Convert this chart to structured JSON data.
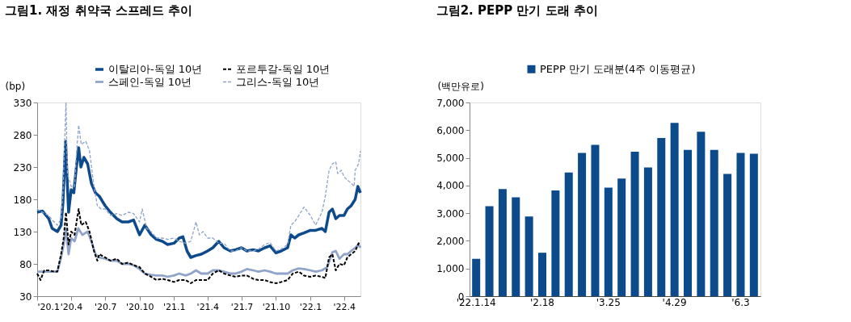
{
  "chart_data": [
    {
      "type": "line",
      "title": "그림1. 재정 취약국 스프레드 추이",
      "ylabel": "(bp)",
      "xlim": [
        "2020-01-01",
        "2022-05-15"
      ],
      "ylim": [
        30,
        330
      ],
      "yticks": [
        30,
        80,
        130,
        180,
        230,
        280,
        330
      ],
      "xticks": [
        {
          "value": "2020-01-01",
          "label": "'20.1"
        },
        {
          "value": "2020-04-01",
          "label": "'20.4"
        },
        {
          "value": "2020-07-01",
          "label": "'20.7"
        },
        {
          "value": "2020-10-01",
          "label": "'20.10"
        },
        {
          "value": "2021-01-01",
          "label": "'21.1"
        },
        {
          "value": "2021-04-01",
          "label": "'21.4"
        },
        {
          "value": "2021-07-01",
          "label": "'21.7"
        },
        {
          "value": "2021-10-01",
          "label": "'21.10"
        },
        {
          "value": "2022-01-01",
          "label": "'22.1"
        },
        {
          "value": "2022-04-01",
          "label": "'22.4"
        }
      ],
      "grid": false,
      "legend": "top",
      "marker": "none",
      "series": [
        {
          "name": "이탈리아-독일 10년",
          "color": "#0d4a8c",
          "line_style": "solid",
          "x": [
            "2020-01-01",
            "2020-01-15",
            "2020-02-01",
            "2020-02-10",
            "2020-02-24",
            "2020-03-05",
            "2020-03-10",
            "2020-03-17",
            "2020-03-25",
            "2020-04-01",
            "2020-04-08",
            "2020-04-15",
            "2020-04-21",
            "2020-04-27",
            "2020-05-05",
            "2020-05-15",
            "2020-05-25",
            "2020-06-05",
            "2020-06-15",
            "2020-07-01",
            "2020-07-15",
            "2020-08-01",
            "2020-08-15",
            "2020-09-01",
            "2020-09-15",
            "2020-10-01",
            "2020-10-15",
            "2020-11-01",
            "2020-11-15",
            "2020-12-01",
            "2020-12-15",
            "2021-01-01",
            "2021-01-15",
            "2021-01-25",
            "2021-02-05",
            "2021-02-15",
            "2021-03-01",
            "2021-03-15",
            "2021-04-01",
            "2021-04-15",
            "2021-05-01",
            "2021-05-15",
            "2021-06-01",
            "2021-06-15",
            "2021-07-01",
            "2021-07-15",
            "2021-08-01",
            "2021-08-15",
            "2021-09-01",
            "2021-09-15",
            "2021-10-01",
            "2021-10-15",
            "2021-11-01",
            "2021-11-10",
            "2021-11-20",
            "2021-12-01",
            "2021-12-15",
            "2022-01-01",
            "2022-01-15",
            "2022-02-01",
            "2022-02-10",
            "2022-02-20",
            "2022-03-01",
            "2022-03-10",
            "2022-03-20",
            "2022-04-01",
            "2022-04-10",
            "2022-04-20",
            "2022-05-01",
            "2022-05-08",
            "2022-05-15"
          ],
          "values": [
            160,
            162,
            150,
            135,
            130,
            140,
            175,
            270,
            160,
            195,
            190,
            230,
            260,
            230,
            245,
            235,
            205,
            190,
            185,
            170,
            160,
            150,
            145,
            145,
            148,
            125,
            140,
            125,
            118,
            115,
            110,
            112,
            120,
            122,
            100,
            90,
            93,
            95,
            100,
            105,
            115,
            105,
            100,
            102,
            105,
            100,
            102,
            100,
            105,
            108,
            97,
            100,
            105,
            125,
            120,
            125,
            128,
            132,
            132,
            135,
            130,
            160,
            165,
            150,
            155,
            155,
            165,
            170,
            180,
            200,
            190
          ]
        },
        {
          "name": "스페인-독일 10년",
          "color": "#8fa4c8",
          "line_style": "solid",
          "x": [
            "2020-01-01",
            "2020-02-01",
            "2020-02-24",
            "2020-03-05",
            "2020-03-12",
            "2020-03-18",
            "2020-03-25",
            "2020-04-01",
            "2020-04-10",
            "2020-04-20",
            "2020-05-01",
            "2020-05-15",
            "2020-05-25",
            "2020-06-05",
            "2020-06-15",
            "2020-07-01",
            "2020-07-15",
            "2020-08-01",
            "2020-08-15",
            "2020-09-01",
            "2020-09-15",
            "2020-10-01",
            "2020-10-15",
            "2020-11-01",
            "2020-11-15",
            "2020-12-01",
            "2020-12-15",
            "2021-01-01",
            "2021-01-15",
            "2021-02-01",
            "2021-02-15",
            "2021-03-01",
            "2021-03-15",
            "2021-04-01",
            "2021-04-15",
            "2021-05-01",
            "2021-05-15",
            "2021-06-01",
            "2021-06-15",
            "2021-07-01",
            "2021-07-15",
            "2021-08-01",
            "2021-08-15",
            "2021-09-01",
            "2021-09-15",
            "2021-10-01",
            "2021-10-15",
            "2021-11-01",
            "2021-11-15",
            "2021-12-01",
            "2021-12-15",
            "2022-01-01",
            "2022-01-15",
            "2022-02-01",
            "2022-02-15",
            "2022-03-01",
            "2022-03-10",
            "2022-03-20",
            "2022-04-01",
            "2022-04-10",
            "2022-04-20",
            "2022-05-01",
            "2022-05-10",
            "2022-05-15"
          ],
          "values": [
            68,
            68,
            68,
            90,
            110,
            135,
            95,
            120,
            115,
            135,
            125,
            130,
            115,
            95,
            90,
            88,
            85,
            85,
            80,
            80,
            78,
            72,
            65,
            63,
            62,
            62,
            60,
            62,
            65,
            62,
            65,
            70,
            65,
            65,
            70,
            70,
            68,
            65,
            65,
            68,
            72,
            70,
            68,
            70,
            68,
            65,
            65,
            65,
            70,
            73,
            72,
            70,
            68,
            70,
            75,
            98,
            100,
            88,
            95,
            95,
            100,
            105,
            110,
            105
          ]
        },
        {
          "name": "포르투갈-독일 10년",
          "color": "#000000",
          "line_style": "dashed",
          "x": [
            "2020-01-01",
            "2020-01-10",
            "2020-01-20",
            "2020-02-01",
            "2020-02-15",
            "2020-02-24",
            "2020-03-05",
            "2020-03-12",
            "2020-03-18",
            "2020-03-25",
            "2020-04-01",
            "2020-04-10",
            "2020-04-21",
            "2020-04-28",
            "2020-05-10",
            "2020-05-20",
            "2020-06-01",
            "2020-06-10",
            "2020-06-15",
            "2020-07-01",
            "2020-07-15",
            "2020-08-01",
            "2020-08-15",
            "2020-09-01",
            "2020-09-15",
            "2020-10-01",
            "2020-10-15",
            "2020-11-01",
            "2020-11-15",
            "2020-12-01",
            "2020-12-15",
            "2021-01-01",
            "2021-01-15",
            "2021-02-01",
            "2021-02-15",
            "2021-03-01",
            "2021-03-15",
            "2021-04-01",
            "2021-04-15",
            "2021-05-01",
            "2021-05-15",
            "2021-06-01",
            "2021-06-15",
            "2021-07-01",
            "2021-07-15",
            "2021-08-01",
            "2021-08-15",
            "2021-09-01",
            "2021-09-15",
            "2021-10-01",
            "2021-10-15",
            "2021-11-01",
            "2021-11-15",
            "2021-12-01",
            "2021-12-15",
            "2022-01-01",
            "2022-01-15",
            "2022-02-01",
            "2022-02-10",
            "2022-02-20",
            "2022-03-01",
            "2022-03-10",
            "2022-03-20",
            "2022-04-01",
            "2022-04-10",
            "2022-04-20",
            "2022-05-01",
            "2022-05-10",
            "2022-05-15"
          ],
          "values": [
            65,
            55,
            70,
            70,
            68,
            68,
            95,
            120,
            160,
            110,
            130,
            125,
            165,
            140,
            145,
            130,
            100,
            85,
            95,
            90,
            85,
            88,
            80,
            82,
            78,
            75,
            65,
            60,
            55,
            57,
            55,
            52,
            55,
            55,
            50,
            55,
            55,
            55,
            65,
            70,
            65,
            62,
            60,
            62,
            62,
            57,
            55,
            55,
            52,
            50,
            52,
            55,
            65,
            68,
            62,
            60,
            62,
            60,
            58,
            90,
            95,
            70,
            80,
            78,
            90,
            95,
            100,
            112,
            110
          ]
        },
        {
          "name": "그리스-독일 10년",
          "color": "#8fa4c8",
          "line_style": "dashed",
          "x": [
            "2020-01-01",
            "2020-01-15",
            "2020-02-01",
            "2020-02-10",
            "2020-02-24",
            "2020-03-05",
            "2020-03-10",
            "2020-03-18",
            "2020-03-22",
            "2020-04-01",
            "2020-04-10",
            "2020-04-15",
            "2020-04-21",
            "2020-04-28",
            "2020-05-10",
            "2020-05-20",
            "2020-06-01",
            "2020-06-10",
            "2020-06-20",
            "2020-07-01",
            "2020-07-15",
            "2020-08-01",
            "2020-08-15",
            "2020-09-01",
            "2020-09-15",
            "2020-10-01",
            "2020-10-08",
            "2020-10-20",
            "2020-11-01",
            "2020-11-15",
            "2020-12-01",
            "2020-12-15",
            "2021-01-01",
            "2021-01-15",
            "2021-02-01",
            "2021-02-15",
            "2021-03-01",
            "2021-03-10",
            "2021-03-20",
            "2021-04-01",
            "2021-04-15",
            "2021-05-01",
            "2021-05-15",
            "2021-06-01",
            "2021-06-15",
            "2021-07-01",
            "2021-07-15",
            "2021-08-01",
            "2021-08-15",
            "2021-09-01",
            "2021-09-15",
            "2021-10-01",
            "2021-10-15",
            "2021-11-01",
            "2021-11-10",
            "2021-11-20",
            "2021-12-01",
            "2021-12-15",
            "2022-01-01",
            "2022-01-15",
            "2022-02-01",
            "2022-02-10",
            "2022-02-20",
            "2022-03-01",
            "2022-03-10",
            "2022-03-15",
            "2022-03-25",
            "2022-04-01",
            "2022-04-10",
            "2022-04-20",
            "2022-04-28",
            "2022-05-01",
            "2022-05-10",
            "2022-05-15"
          ],
          "values": [
            165,
            160,
            155,
            148,
            140,
            150,
            190,
            330,
            220,
            200,
            200,
            250,
            295,
            265,
            270,
            255,
            200,
            170,
            165,
            165,
            155,
            158,
            155,
            160,
            158,
            145,
            165,
            135,
            130,
            120,
            120,
            118,
            120,
            115,
            112,
            115,
            145,
            125,
            130,
            120,
            120,
            112,
            112,
            100,
            100,
            105,
            100,
            100,
            103,
            110,
            113,
            100,
            103,
            110,
            140,
            145,
            155,
            168,
            155,
            140,
            160,
            185,
            225,
            235,
            238,
            220,
            225,
            215,
            210,
            205,
            200,
            225,
            235,
            255
          ]
        }
      ]
    },
    {
      "type": "bar",
      "title": "그림2. PEPP 만기 도래 추이",
      "ylabel": "(백만유로)",
      "categories": [
        "'22.1.14",
        null,
        null,
        null,
        null,
        "'2.18",
        null,
        null,
        null,
        null,
        "'3.25",
        null,
        null,
        null,
        null,
        "'4.29",
        null,
        null,
        null,
        null,
        "'6.3",
        null
      ],
      "ylim": [
        0,
        7000
      ],
      "yticks": [
        0,
        {
          "value": 1000,
          "label": "1,000"
        },
        {
          "value": 2000,
          "label": "2,000"
        },
        {
          "value": 3000,
          "label": "3,000"
        },
        {
          "value": 4000,
          "label": "4,000"
        },
        {
          "value": 5000,
          "label": "5,000"
        },
        {
          "value": 6000,
          "label": "6,000"
        },
        {
          "value": 7000,
          "label": "7,000"
        }
      ],
      "grid": false,
      "legend": "top",
      "series": [
        {
          "name": "PEPP 만기 도래분(4주 이동평균)",
          "color": "#0b4a8b",
          "values": [
            1350,
            3250,
            3870,
            3570,
            2880,
            1570,
            3820,
            4470,
            5180,
            5470,
            3920,
            4250,
            5220,
            4650,
            5720,
            6260,
            5290,
            5940,
            5290,
            4420,
            5180,
            5150
          ]
        }
      ]
    }
  ]
}
